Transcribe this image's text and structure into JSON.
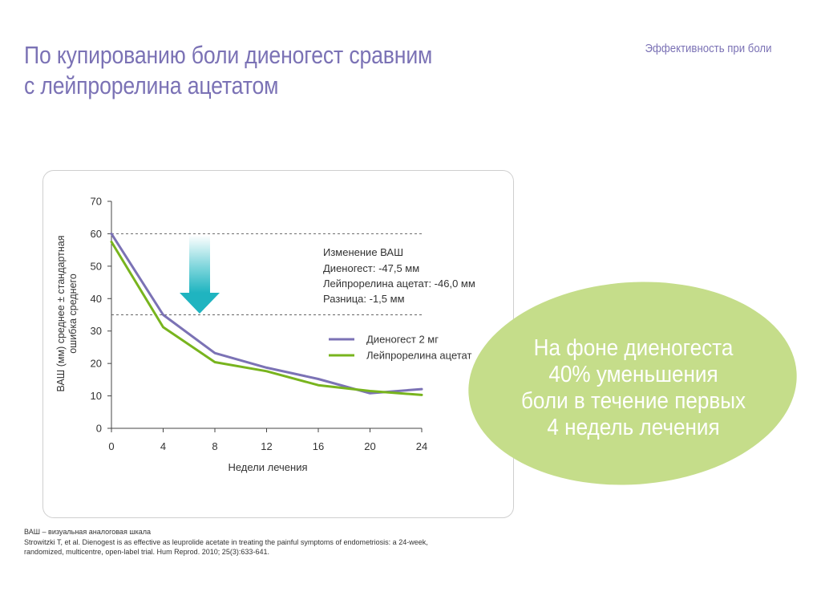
{
  "header": {
    "title_line1": "По купированию боли диеногест сравним",
    "title_line2": "с лейпрорелина ацетатом",
    "section_label": "Эффективность при боли"
  },
  "chart_data": {
    "type": "line",
    "xlabel": "Недели лечения",
    "ylabel_line1": "ВАШ (мм) среднее ± стандартная",
    "ylabel_line2": "ошибка среднего",
    "xlim": [
      0,
      24
    ],
    "ylim": [
      0,
      70
    ],
    "x_ticks": [
      0,
      4,
      8,
      12,
      16,
      20,
      24
    ],
    "y_ticks": [
      0,
      10,
      20,
      30,
      40,
      50,
      60,
      70
    ],
    "reference_lines": [
      60,
      35
    ],
    "series": [
      {
        "name": "Диеногест 2 мг",
        "color": "#7b72b5",
        "x": [
          0,
          4,
          8,
          12,
          16,
          20,
          24
        ],
        "y": [
          60,
          35,
          23.2,
          18.7,
          15.2,
          10.8,
          12.1
        ]
      },
      {
        "name": "Лейпрорелина ацетат",
        "color": "#78b41e",
        "x": [
          0,
          4,
          8,
          12,
          16,
          20,
          24
        ],
        "y": [
          57.5,
          31.2,
          20.4,
          17.6,
          13.3,
          11.5,
          10.3
        ]
      }
    ],
    "annotation": {
      "heading": "Изменение ВАШ",
      "line1": "Диеногест: -47,5 мм",
      "line2": "Лейпрорелина ацетат: -46,0 мм",
      "line3": "Разница: -1,5 мм"
    }
  },
  "highlight": {
    "line1": "На фоне диеногеста",
    "line2": "40% уменьшения",
    "line3": "боли в течение первых",
    "line4": "4 недель лечения",
    "color": "#c5dd8a"
  },
  "footer": {
    "line1": "ВАШ – визуальная аналоговая шкала",
    "line2": "Strowitzki T, et al. Dienogest is as effective as leuprolide acetate in treating the painful symptoms of endometriosis: a 24-week,",
    "line3": "randomized, multicentre, open-label trial. Hum Reprod. 2010; 25(3):633-641."
  }
}
